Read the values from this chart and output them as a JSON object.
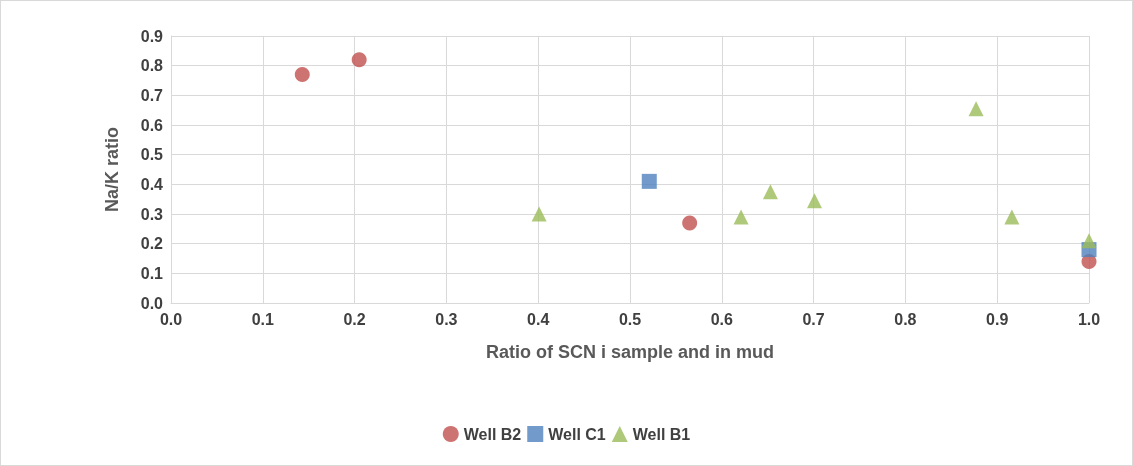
{
  "chart_data": {
    "type": "scatter",
    "xlabel": "Ratio of SCN i sample and in mud",
    "ylabel": "Na/K ratio",
    "series": [
      {
        "name": "Well B2",
        "color": "#c0504d",
        "marker": "circle",
        "x": [
          0.143,
          0.205,
          0.565,
          1.0
        ],
        "values": [
          0.77,
          0.82,
          0.27,
          0.14
        ]
      },
      {
        "name": "Well C1",
        "color": "#4f81bd",
        "marker": "square",
        "x": [
          0.521,
          1.0
        ],
        "values": [
          0.41,
          0.18
        ]
      },
      {
        "name": "Well B1",
        "color": "#9bbb59",
        "marker": "triangle",
        "x": [
          0.401,
          0.621,
          0.653,
          0.701,
          0.877,
          0.916,
          1.0
        ],
        "values": [
          0.3,
          0.29,
          0.375,
          0.345,
          0.655,
          0.29,
          0.21
        ]
      }
    ],
    "xlim": [
      0,
      1
    ],
    "xticks": [
      {
        "value": 0,
        "label": "0.0"
      },
      0.1,
      0.2,
      0.3,
      0.4,
      0.5,
      0.6,
      0.7,
      0.8,
      0.9,
      {
        "value": 1,
        "label": "1.0"
      }
    ],
    "ylim": [
      0,
      0.9
    ],
    "yticks": [
      {
        "value": 0,
        "label": "0.0"
      },
      0.1,
      0.2,
      0.3,
      0.4,
      0.5,
      0.6,
      0.7,
      0.8,
      0.9
    ],
    "grid": true,
    "legend": "bottom"
  }
}
